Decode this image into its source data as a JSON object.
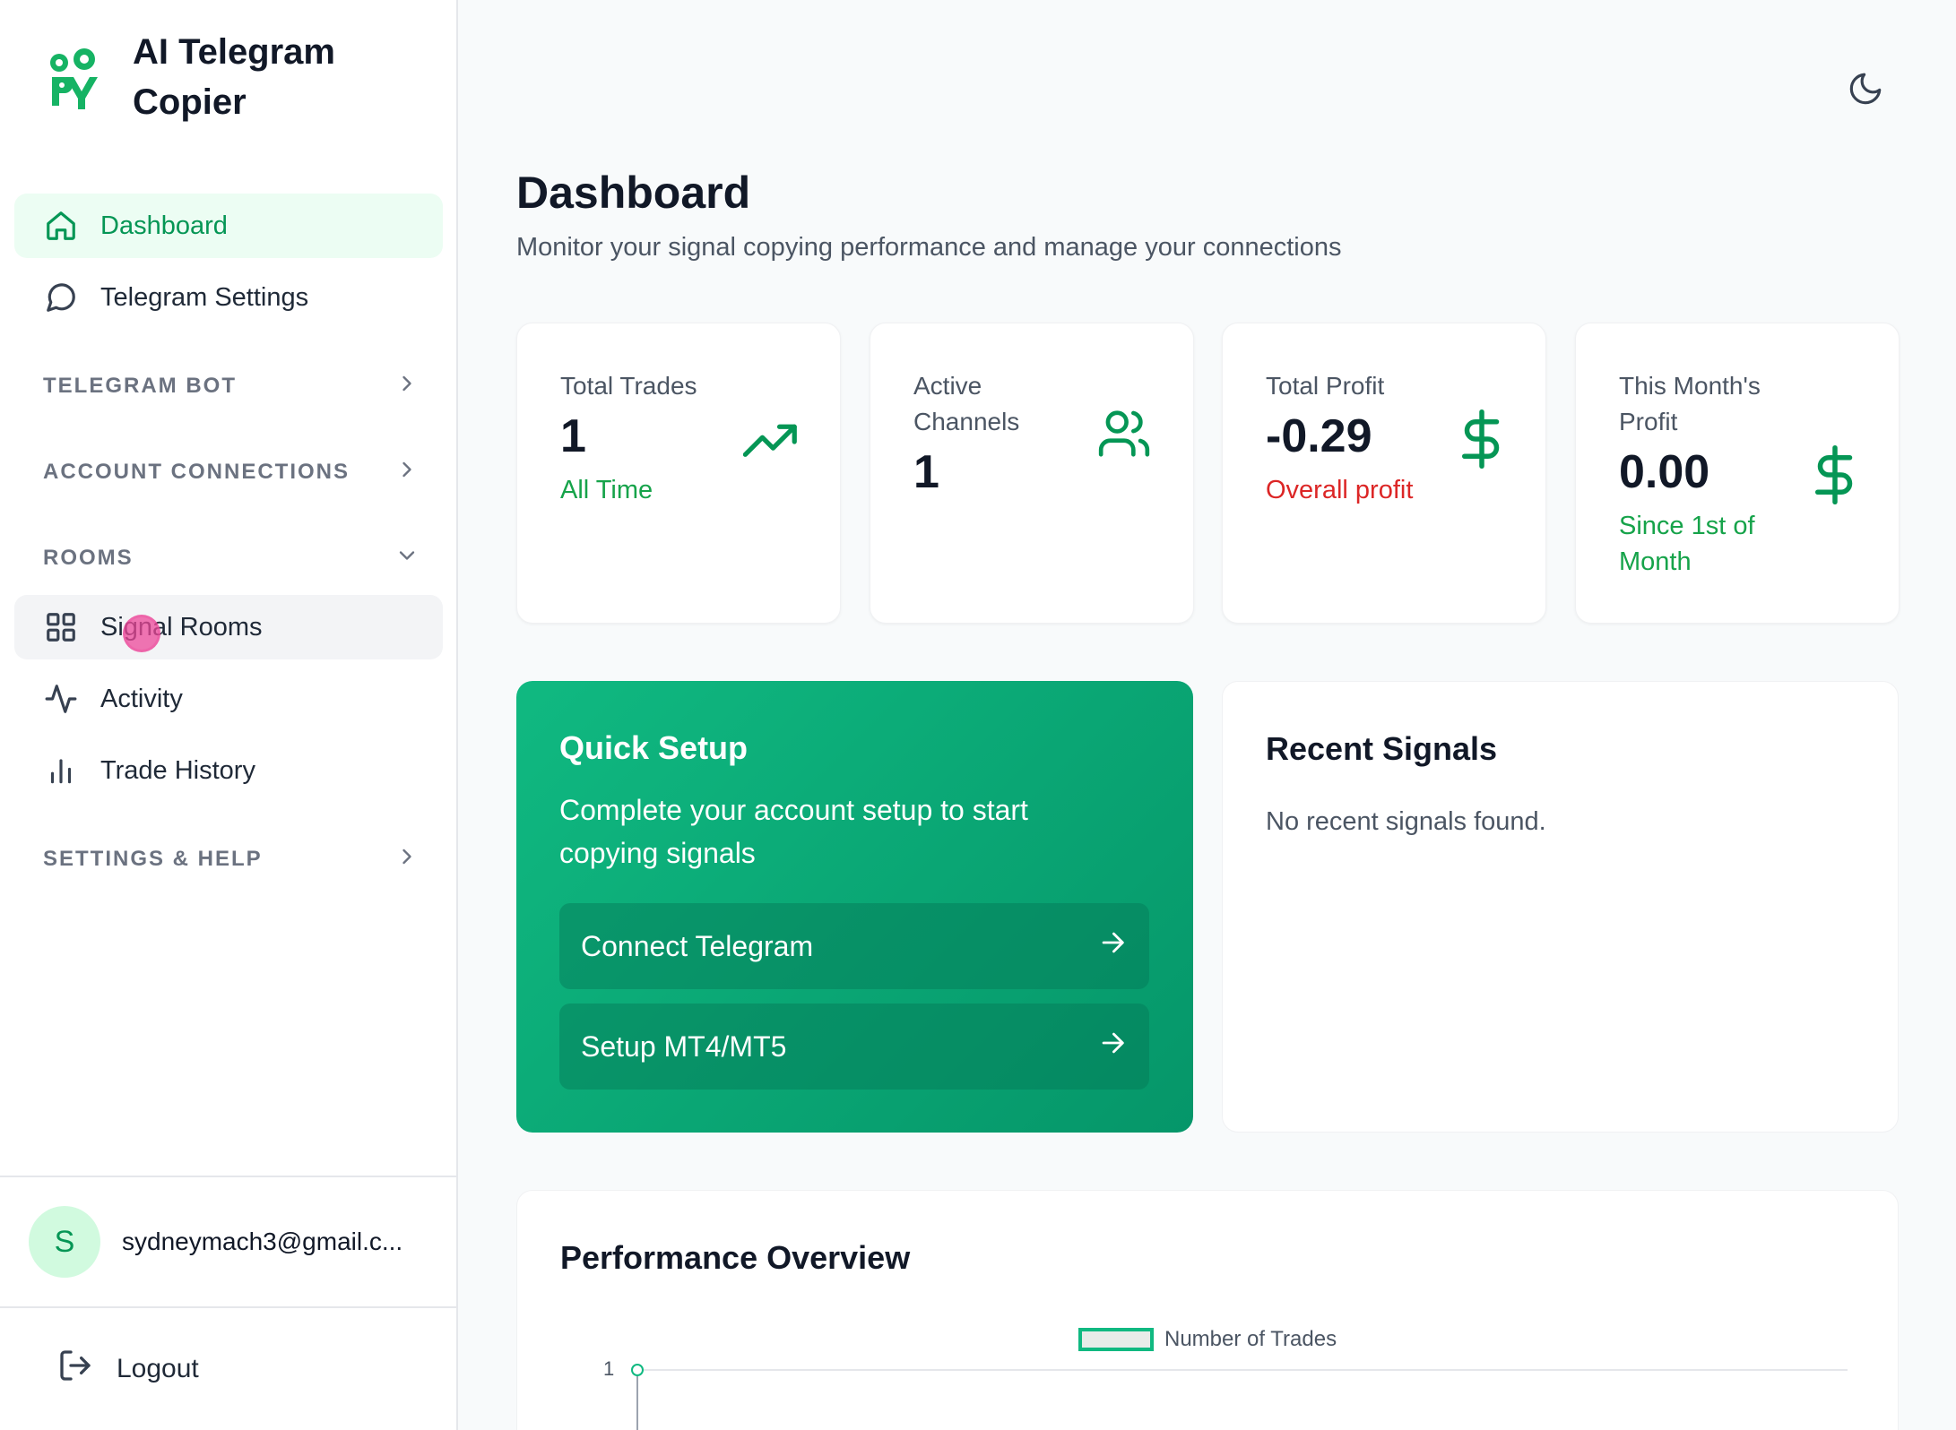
{
  "app": {
    "title": "AI Telegram Copier"
  },
  "sidebar": {
    "items": [
      {
        "label": "Dashboard",
        "icon": "home-icon"
      },
      {
        "label": "Telegram Settings",
        "icon": "message-circle-icon"
      }
    ],
    "sections": [
      {
        "label": "TELEGRAM BOT",
        "state": "collapsed"
      },
      {
        "label": "ACCOUNT CONNECTIONS",
        "state": "collapsed"
      },
      {
        "label": "ROOMS",
        "state": "expanded"
      },
      {
        "label": "SETTINGS & HELP",
        "state": "collapsed"
      }
    ],
    "rooms": [
      {
        "label": "Signal Rooms",
        "icon": "grid-icon"
      },
      {
        "label": "Activity",
        "icon": "activity-icon"
      },
      {
        "label": "Trade History",
        "icon": "bar-chart-icon"
      }
    ],
    "user": {
      "initial": "S",
      "email": "sydneymach3@gmail.c..."
    },
    "logout_label": "Logout"
  },
  "header": {
    "title": "Dashboard",
    "subtitle": "Monitor your signal copying performance and manage your connections"
  },
  "stats": [
    {
      "label": "Total Trades",
      "value": "1",
      "sub": "All Time",
      "icon": "trending-up-icon"
    },
    {
      "label": "Active Channels",
      "value": "1",
      "icon": "users-icon"
    },
    {
      "label": "Total Profit",
      "value": "-0.29",
      "sub": "Overall profit",
      "icon": "dollar-icon"
    },
    {
      "label": "This Month's Profit",
      "value": "0.00",
      "sub": "Since 1st of Month",
      "icon": "dollar-icon"
    }
  ],
  "quick_setup": {
    "title": "Quick Setup",
    "description": "Complete your account setup to start copying signals",
    "buttons": [
      {
        "label": "Connect Telegram"
      },
      {
        "label": "Setup MT4/MT5"
      }
    ]
  },
  "recent_signals": {
    "title": "Recent Signals",
    "empty_text": "No recent signals found."
  },
  "performance": {
    "title": "Performance Overview"
  },
  "chart_data": {
    "type": "line",
    "title": "",
    "series": [
      {
        "name": "Number of Trades",
        "values": [
          1
        ]
      }
    ],
    "y_ticks": [
      "1"
    ]
  },
  "colors": {
    "accent": "#059655",
    "accent_light": "#ecfdf3",
    "negative": "#dc2626",
    "positive": "#16a34a"
  }
}
